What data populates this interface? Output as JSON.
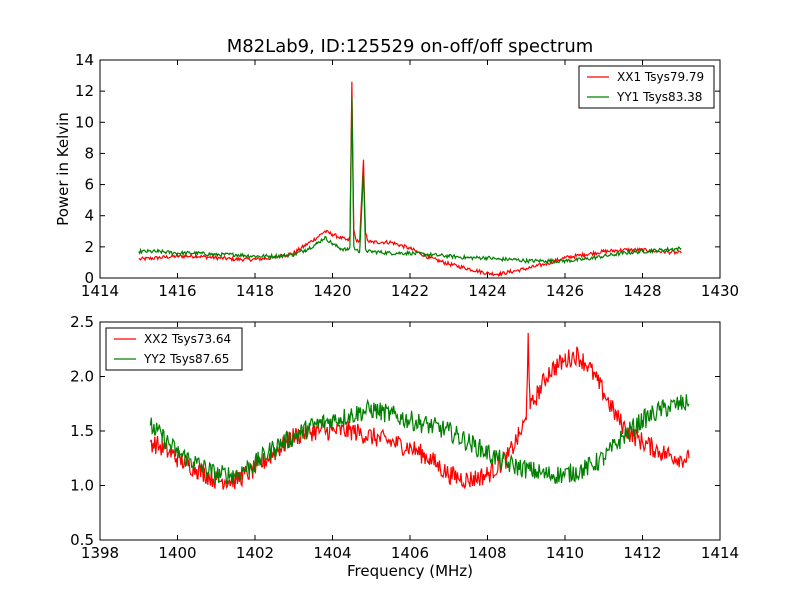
{
  "figure": {
    "title": "M82Lab9, ID:125529 on-off/off spectrum"
  },
  "chart_data": [
    {
      "type": "line",
      "title": "M82Lab9, ID:125529 on-off/off spectrum",
      "xlabel": "",
      "ylabel": "Power in Kelvin",
      "xlim": [
        1414,
        1430
      ],
      "ylim": [
        0,
        14
      ],
      "xticks": [
        1414,
        1416,
        1418,
        1420,
        1422,
        1424,
        1426,
        1428,
        1430
      ],
      "yticks": [
        0,
        2,
        4,
        6,
        8,
        10,
        12,
        14
      ],
      "xtick_labels": [
        "1414",
        "1416",
        "1418",
        "1420",
        "1422",
        "1424",
        "1426",
        "1428",
        "1430"
      ],
      "ytick_labels": [
        "0",
        "2",
        "4",
        "6",
        "8",
        "10",
        "12",
        "14"
      ],
      "grid": false,
      "legend_position": "top-right",
      "series": [
        {
          "name": "XX1 Tsys79.79",
          "color": "#ff0000",
          "x": [
            1415.0,
            1415.5,
            1416.0,
            1416.5,
            1417.0,
            1417.5,
            1418.0,
            1418.5,
            1419.0,
            1419.3,
            1419.6,
            1419.8,
            1420.0,
            1420.2,
            1420.4,
            1420.45,
            1420.5,
            1420.55,
            1420.6,
            1420.7,
            1420.8,
            1420.85,
            1420.9,
            1421.0,
            1421.5,
            1422.0,
            1422.5,
            1423.0,
            1423.5,
            1424.0,
            1424.3,
            1424.6,
            1425.0,
            1425.5,
            1426.0,
            1426.5,
            1427.0,
            1427.5,
            1428.0,
            1428.5,
            1429.0
          ],
          "y": [
            1.2,
            1.3,
            1.4,
            1.4,
            1.3,
            1.2,
            1.2,
            1.3,
            1.6,
            2.1,
            2.6,
            3.0,
            2.8,
            2.6,
            2.4,
            2.6,
            12.6,
            3.0,
            2.5,
            2.3,
            7.6,
            3.0,
            2.4,
            2.3,
            2.3,
            1.9,
            1.3,
            0.9,
            0.6,
            0.3,
            0.25,
            0.4,
            0.6,
            0.9,
            1.3,
            1.5,
            1.7,
            1.8,
            1.8,
            1.7,
            1.6
          ]
        },
        {
          "name": "YY1 Tsys83.38",
          "color": "#008000",
          "x": [
            1415.0,
            1415.5,
            1416.0,
            1416.5,
            1417.0,
            1417.5,
            1418.0,
            1418.5,
            1419.0,
            1419.3,
            1419.6,
            1419.8,
            1420.0,
            1420.2,
            1420.4,
            1420.45,
            1420.5,
            1420.55,
            1420.6,
            1420.7,
            1420.8,
            1420.85,
            1420.9,
            1421.0,
            1421.5,
            1422.0,
            1422.5,
            1423.0,
            1423.5,
            1424.0,
            1424.3,
            1424.6,
            1425.0,
            1425.5,
            1426.0,
            1426.5,
            1427.0,
            1427.5,
            1428.0,
            1428.5,
            1429.0
          ],
          "y": [
            1.7,
            1.7,
            1.6,
            1.6,
            1.5,
            1.5,
            1.4,
            1.4,
            1.5,
            1.8,
            2.2,
            2.6,
            2.2,
            1.9,
            1.8,
            2.0,
            11.6,
            2.0,
            1.8,
            1.7,
            6.8,
            1.9,
            1.7,
            1.7,
            1.6,
            1.6,
            1.5,
            1.4,
            1.3,
            1.3,
            1.2,
            1.2,
            1.1,
            1.1,
            1.1,
            1.2,
            1.4,
            1.6,
            1.7,
            1.8,
            1.9
          ]
        }
      ]
    },
    {
      "type": "line",
      "title": "",
      "xlabel": "Frequency (MHz)",
      "ylabel": "",
      "xlim": [
        1398,
        1414
      ],
      "ylim": [
        0.5,
        2.5
      ],
      "xticks": [
        1398,
        1400,
        1402,
        1404,
        1406,
        1408,
        1410,
        1412,
        1414
      ],
      "yticks": [
        0.5,
        1.0,
        1.5,
        2.0,
        2.5
      ],
      "xtick_labels": [
        "1398",
        "1400",
        "1402",
        "1404",
        "1406",
        "1408",
        "1410",
        "1412",
        "1414"
      ],
      "ytick_labels": [
        "0.5",
        "1.0",
        "1.5",
        "2.0",
        "2.5"
      ],
      "grid": false,
      "legend_position": "top-left",
      "series": [
        {
          "name": "XX2 Tsys73.64",
          "color": "#ff0000",
          "x": [
            1399.3,
            1399.6,
            1400.0,
            1400.5,
            1401.0,
            1401.5,
            1402.0,
            1402.5,
            1403.0,
            1403.5,
            1404.0,
            1404.5,
            1405.0,
            1405.5,
            1406.0,
            1406.5,
            1407.0,
            1407.5,
            1408.0,
            1408.5,
            1408.8,
            1409.0,
            1409.05,
            1409.1,
            1409.3,
            1409.6,
            1410.0,
            1410.3,
            1410.6,
            1411.0,
            1411.3,
            1411.6,
            1412.0,
            1412.5,
            1413.0,
            1413.2
          ],
          "y": [
            1.4,
            1.35,
            1.25,
            1.15,
            1.05,
            1.05,
            1.15,
            1.3,
            1.45,
            1.5,
            1.5,
            1.5,
            1.45,
            1.4,
            1.35,
            1.25,
            1.1,
            1.05,
            1.1,
            1.25,
            1.45,
            1.6,
            2.4,
            1.7,
            1.85,
            2.05,
            2.15,
            2.2,
            2.1,
            1.85,
            1.65,
            1.5,
            1.4,
            1.3,
            1.25,
            1.25
          ]
        },
        {
          "name": "YY2 Tsys87.65",
          "color": "#008000",
          "x": [
            1399.3,
            1399.6,
            1400.0,
            1400.5,
            1401.0,
            1401.5,
            1402.0,
            1402.5,
            1403.0,
            1403.5,
            1404.0,
            1404.5,
            1405.0,
            1405.5,
            1406.0,
            1406.5,
            1407.0,
            1407.5,
            1408.0,
            1408.5,
            1409.0,
            1409.5,
            1410.0,
            1410.5,
            1411.0,
            1411.5,
            1412.0,
            1412.5,
            1413.0,
            1413.2
          ],
          "y": [
            1.55,
            1.45,
            1.3,
            1.2,
            1.1,
            1.1,
            1.2,
            1.35,
            1.45,
            1.55,
            1.6,
            1.65,
            1.7,
            1.65,
            1.6,
            1.55,
            1.5,
            1.4,
            1.3,
            1.2,
            1.15,
            1.1,
            1.1,
            1.15,
            1.25,
            1.45,
            1.6,
            1.7,
            1.75,
            1.75
          ]
        }
      ]
    }
  ]
}
